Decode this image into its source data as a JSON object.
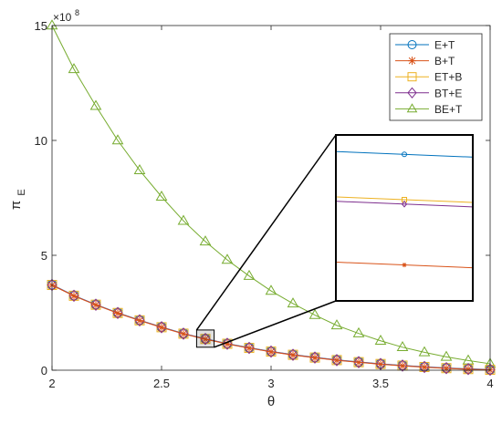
{
  "chart_data": {
    "type": "line",
    "xlabel": "θ",
    "ylabel": "π",
    "ylabel_subscript": "E",
    "y_exponent_base": "×10",
    "y_exponent_power": "8",
    "xlim": [
      2,
      4
    ],
    "ylim": [
      0,
      15
    ],
    "x_ticks": [
      2,
      2.5,
      3,
      3.5,
      4
    ],
    "x_tick_labels": [
      "2",
      "2.5",
      "3",
      "3.5",
      "4"
    ],
    "y_ticks": [
      0,
      5,
      10,
      15
    ],
    "y_tick_labels": [
      "0",
      "5",
      "10",
      "15"
    ],
    "y_unit_multiplier": 100000000,
    "grid": false,
    "legend_position": "top-right",
    "x": [
      2,
      2.1,
      2.2,
      2.3,
      2.4,
      2.5,
      2.6,
      2.7,
      2.8,
      2.9,
      3,
      3.1,
      3.2,
      3.3,
      3.4,
      3.5,
      3.6,
      3.7,
      3.8,
      3.9,
      4
    ],
    "series": [
      {
        "name": "E+T",
        "color": "#0072BD",
        "marker": "circle",
        "values": [
          3.72,
          3.25,
          2.86,
          2.5,
          2.18,
          1.88,
          1.6,
          1.37,
          1.16,
          0.98,
          0.82,
          0.68,
          0.56,
          0.45,
          0.36,
          0.28,
          0.21,
          0.15,
          0.1,
          0.06,
          0.03
        ]
      },
      {
        "name": "B+T",
        "color": "#D95319",
        "marker": "star",
        "values": [
          3.7,
          3.23,
          2.84,
          2.48,
          2.16,
          1.86,
          1.58,
          1.35,
          1.14,
          0.96,
          0.8,
          0.66,
          0.54,
          0.43,
          0.34,
          0.26,
          0.19,
          0.13,
          0.08,
          0.04,
          0.01
        ]
      },
      {
        "name": "ET+B",
        "color": "#EDB120",
        "marker": "square",
        "values": [
          3.71,
          3.24,
          2.85,
          2.49,
          2.17,
          1.87,
          1.59,
          1.36,
          1.15,
          0.97,
          0.81,
          0.67,
          0.55,
          0.44,
          0.35,
          0.27,
          0.2,
          0.14,
          0.09,
          0.05,
          0.02
        ]
      },
      {
        "name": "BT+E",
        "color": "#7E2F8E",
        "marker": "diamond",
        "values": [
          3.71,
          3.24,
          2.85,
          2.49,
          2.17,
          1.87,
          1.59,
          1.36,
          1.15,
          0.97,
          0.81,
          0.67,
          0.55,
          0.44,
          0.35,
          0.27,
          0.2,
          0.14,
          0.09,
          0.05,
          0.02
        ]
      },
      {
        "name": "BE+T",
        "color": "#77AC30",
        "marker": "triangle",
        "values": [
          15.0,
          13.1,
          11.5,
          10.0,
          8.7,
          7.55,
          6.5,
          5.6,
          4.8,
          4.1,
          3.45,
          2.9,
          2.4,
          1.95,
          1.6,
          1.28,
          1.0,
          0.78,
          0.58,
          0.42,
          0.28
        ]
      }
    ],
    "inset": {
      "source_xlim": [
        2.66,
        2.74
      ],
      "source_ylim": [
        1.0,
        1.75
      ],
      "zoom_ylim": [
        1.3475,
        1.3775
      ],
      "zoom_x": [
        2.66,
        2.74
      ],
      "marker_x": 2.7,
      "zoom_series": [
        {
          "name": "E+T",
          "values": [
            1.3745,
            1.3735
          ]
        },
        {
          "name": "B+T",
          "values": [
            1.3545,
            1.3535
          ]
        },
        {
          "name": "ET+B",
          "values": [
            1.3663,
            1.3653
          ]
        },
        {
          "name": "BT+E",
          "values": [
            1.3655,
            1.3645
          ]
        }
      ]
    }
  }
}
